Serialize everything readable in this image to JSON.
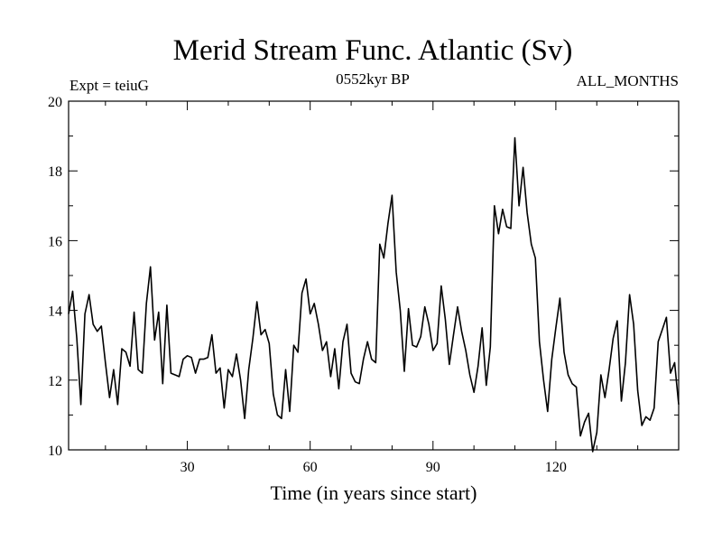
{
  "chart_data": {
    "type": "line",
    "title": "Merid Stream Func. Atlantic (Sv)",
    "subtitle_left": "Expt = teiuG",
    "subtitle_center": "0552kyr BP",
    "subtitle_right": "ALL_MONTHS",
    "xlabel": "Time (in years since start)",
    "ylabel": "",
    "xlim": [
      1,
      150
    ],
    "ylim": [
      10,
      20
    ],
    "x_ticks": [
      30,
      60,
      90,
      120
    ],
    "y_ticks": [
      10,
      12,
      14,
      16,
      18,
      20
    ],
    "x_minor_step": 10,
    "y_minor_step": 1,
    "grid": false,
    "line_color": "#000000",
    "series": [
      {
        "name": "Merid Stream Func. Atlantic",
        "x_start": 1,
        "x_step": 1,
        "values": [
          13.9,
          14.55,
          13.2,
          11.3,
          13.9,
          14.45,
          13.6,
          13.4,
          13.55,
          12.5,
          11.5,
          12.3,
          11.3,
          12.9,
          12.8,
          12.4,
          13.95,
          12.3,
          12.2,
          14.2,
          15.25,
          13.15,
          13.95,
          11.9,
          14.15,
          12.2,
          12.15,
          12.1,
          12.6,
          12.7,
          12.65,
          12.2,
          12.6,
          12.6,
          12.65,
          13.3,
          12.2,
          12.35,
          11.2,
          12.3,
          12.1,
          12.75,
          12.0,
          10.9,
          12.3,
          13.2,
          14.25,
          13.3,
          13.45,
          13.05,
          11.6,
          11.0,
          10.9,
          12.3,
          11.1,
          13.0,
          12.8,
          14.5,
          14.9,
          13.9,
          14.2,
          13.6,
          12.85,
          13.1,
          12.1,
          12.9,
          11.75,
          13.1,
          13.6,
          12.2,
          11.95,
          11.9,
          12.6,
          13.1,
          12.6,
          12.5,
          15.9,
          15.5,
          16.5,
          17.3,
          15.1,
          14.0,
          12.25,
          14.05,
          13.0,
          12.95,
          13.25,
          14.1,
          13.6,
          12.85,
          13.05,
          14.7,
          13.75,
          12.45,
          13.3,
          14.1,
          13.4,
          12.85,
          12.15,
          11.65,
          12.4,
          13.5,
          11.85,
          12.95,
          17.0,
          16.2,
          16.9,
          16.4,
          16.35,
          18.95,
          17.0,
          18.1,
          16.8,
          15.9,
          15.5,
          13.1,
          12.0,
          11.1,
          12.6,
          13.5,
          14.35,
          12.8,
          12.15,
          11.9,
          11.8,
          10.4,
          10.8,
          11.05,
          9.95,
          10.5,
          12.15,
          11.5,
          12.3,
          13.2,
          13.7,
          11.4,
          12.5,
          14.45,
          13.6,
          11.7,
          10.7,
          10.95,
          10.85,
          11.2,
          13.1,
          13.45,
          13.8,
          12.2,
          12.5,
          11.3
        ]
      }
    ]
  }
}
